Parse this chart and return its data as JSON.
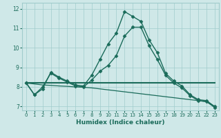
{
  "xlabel": "Humidex (Indice chaleur)",
  "background_color": "#cfe8e8",
  "line_color": "#1a6b5a",
  "grid_color": "#a0cccc",
  "xlim": [
    -0.5,
    23.5
  ],
  "ylim": [
    6.8,
    12.3
  ],
  "xticks": [
    0,
    1,
    2,
    3,
    4,
    5,
    6,
    7,
    8,
    9,
    10,
    11,
    12,
    13,
    14,
    15,
    16,
    17,
    18,
    19,
    20,
    21,
    22,
    23
  ],
  "yticks": [
    7,
    8,
    9,
    10,
    11,
    12
  ],
  "lines": [
    {
      "x": [
        0,
        1,
        2,
        3,
        4,
        5,
        6,
        7,
        8,
        9,
        10,
        11,
        12,
        13,
        14,
        15,
        16,
        17,
        18,
        19,
        20,
        21,
        22,
        23
      ],
      "y": [
        8.2,
        7.6,
        7.9,
        8.75,
        8.5,
        8.3,
        8.1,
        8.05,
        8.6,
        9.4,
        10.2,
        10.75,
        11.85,
        11.6,
        11.35,
        10.4,
        9.75,
        8.7,
        8.3,
        8.05,
        7.6,
        7.35,
        7.3,
        7.0
      ],
      "marker": "D",
      "markersize": 2.5,
      "linewidth": 1.0
    },
    {
      "x": [
        0,
        1,
        2,
        3,
        4,
        5,
        6,
        7,
        8,
        9,
        10,
        11,
        12,
        13,
        14,
        15,
        16,
        17,
        18,
        19,
        20,
        21,
        22,
        23
      ],
      "y": [
        8.2,
        7.6,
        8.0,
        8.7,
        8.45,
        8.25,
        8.05,
        8.0,
        8.35,
        8.8,
        9.1,
        9.6,
        10.6,
        11.05,
        11.05,
        10.1,
        9.4,
        8.6,
        8.2,
        7.95,
        7.55,
        7.3,
        7.25,
        6.95
      ],
      "marker": "D",
      "markersize": 2.5,
      "linewidth": 1.0
    },
    {
      "x": [
        0,
        23
      ],
      "y": [
        8.2,
        8.2
      ],
      "marker": "None",
      "markersize": 0,
      "linewidth": 1.5
    },
    {
      "x": [
        0,
        1,
        2,
        3,
        4,
        5,
        6,
        7,
        8,
        9,
        10,
        11,
        12,
        13,
        14,
        15,
        16,
        17,
        18,
        19,
        20,
        21,
        22,
        23
      ],
      "y": [
        8.2,
        8.15,
        8.1,
        8.08,
        8.05,
        8.03,
        8.0,
        7.98,
        7.95,
        7.9,
        7.85,
        7.8,
        7.75,
        7.7,
        7.65,
        7.6,
        7.55,
        7.5,
        7.45,
        7.4,
        7.35,
        7.3,
        7.25,
        7.0
      ],
      "marker": "None",
      "markersize": 0,
      "linewidth": 0.9
    }
  ]
}
